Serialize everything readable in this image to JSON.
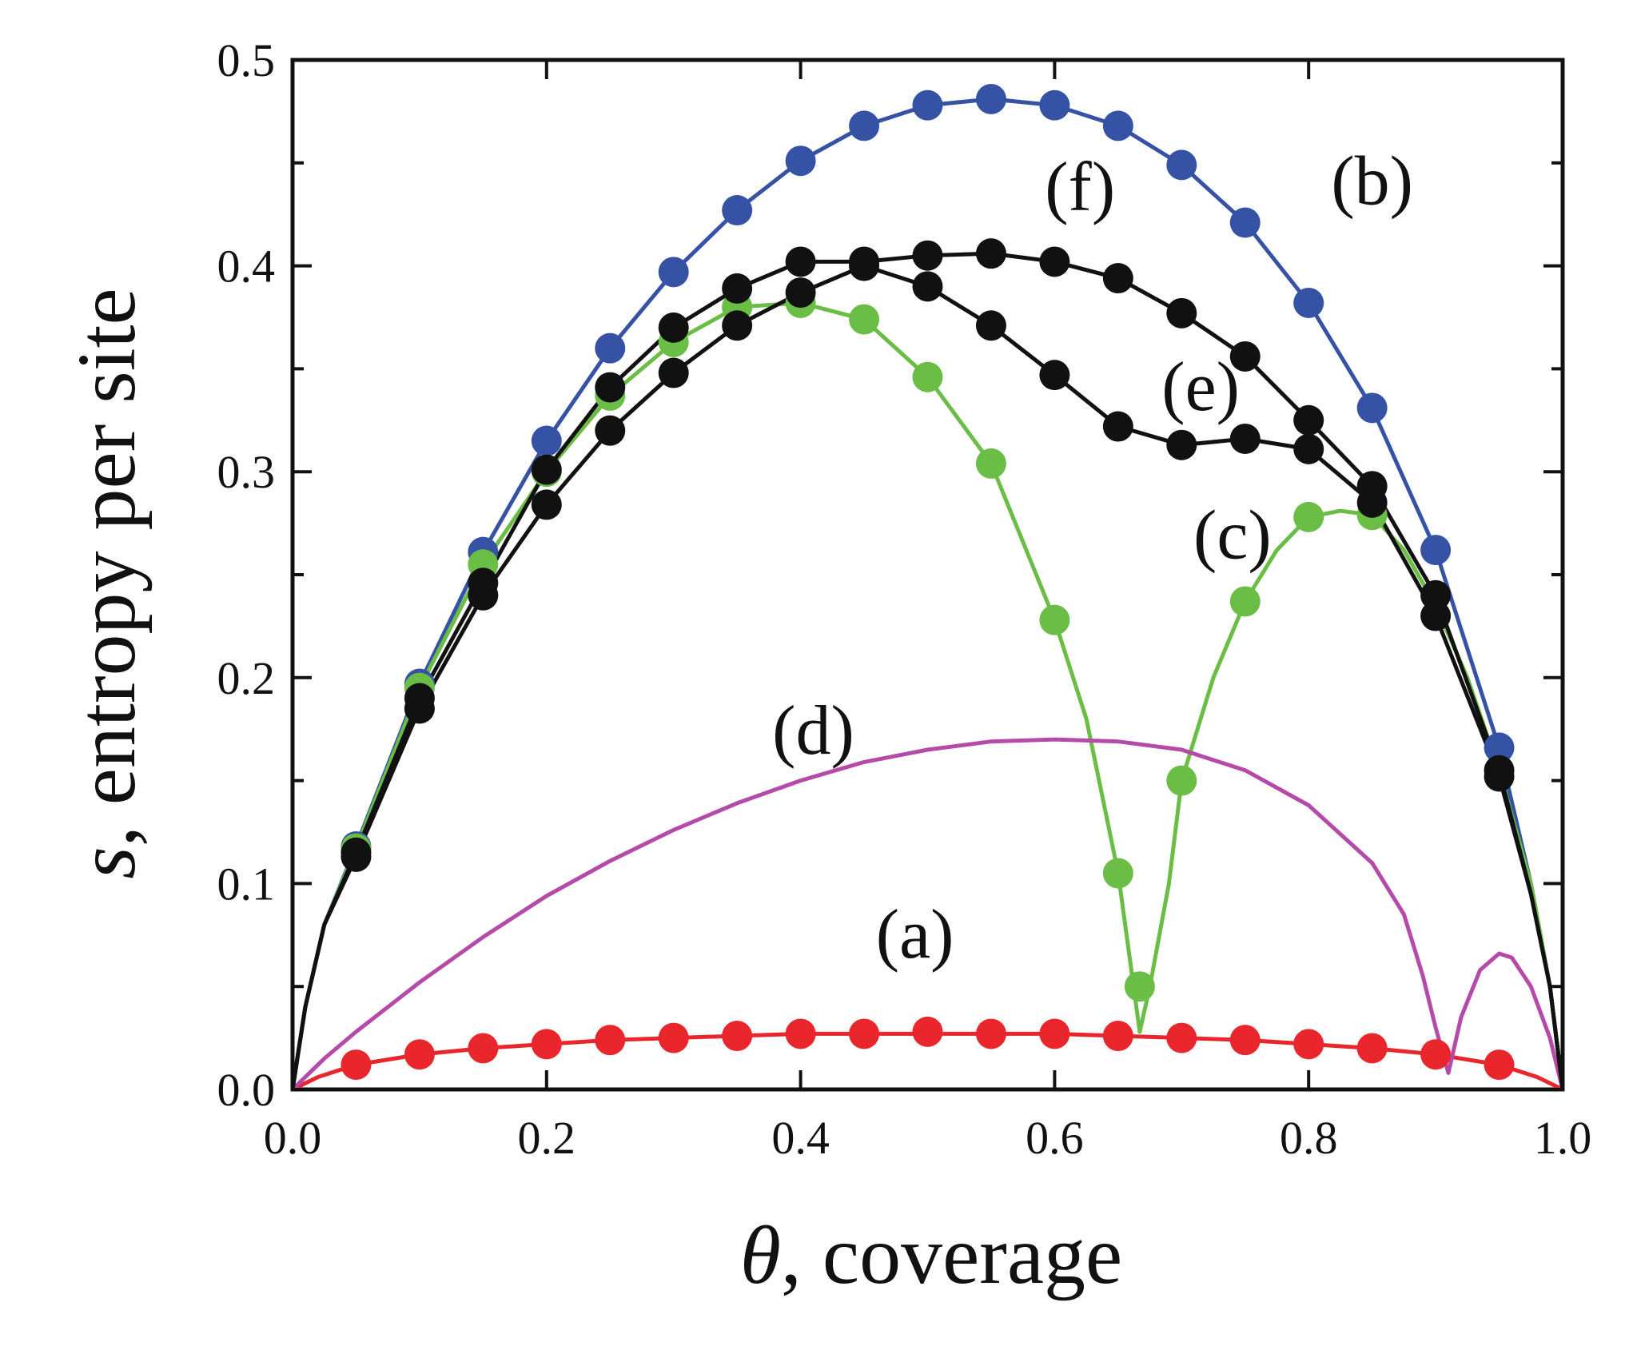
{
  "chart_data": {
    "type": "line",
    "xlabel": {
      "symbol": "θ",
      "text": ", coverage"
    },
    "ylabel": {
      "symbol": "s",
      "text": ", entropy per site"
    },
    "xlim": [
      0,
      1
    ],
    "ylim": [
      0,
      0.5
    ],
    "x_ticks": [
      0,
      0.2,
      0.4,
      0.6,
      0.8,
      1.0
    ],
    "x_tick_labels": [
      "0.0",
      "0.2",
      "0.4",
      "0.6",
      "0.8",
      "1.0"
    ],
    "y_ticks": [
      0,
      0.1,
      0.2,
      0.3,
      0.4,
      0.5
    ],
    "y_tick_labels": [
      "0.0",
      "0.1",
      "0.2",
      "0.3",
      "0.4",
      "0.5"
    ],
    "y_minor_ticks": [
      0.05,
      0.15,
      0.25,
      0.35,
      0.45
    ],
    "series": [
      {
        "name": "(a)",
        "color": "#e8262b",
        "line": [
          [
            0,
            0
          ],
          [
            0.02,
            0.006
          ],
          [
            0.05,
            0.012
          ],
          [
            0.1,
            0.017
          ],
          [
            0.15,
            0.02
          ],
          [
            0.2,
            0.022
          ],
          [
            0.25,
            0.024
          ],
          [
            0.3,
            0.025
          ],
          [
            0.35,
            0.026
          ],
          [
            0.4,
            0.027
          ],
          [
            0.45,
            0.027
          ],
          [
            0.5,
            0.027
          ],
          [
            0.55,
            0.027
          ],
          [
            0.6,
            0.027
          ],
          [
            0.65,
            0.026
          ],
          [
            0.7,
            0.025
          ],
          [
            0.75,
            0.024
          ],
          [
            0.8,
            0.022
          ],
          [
            0.85,
            0.02
          ],
          [
            0.9,
            0.017
          ],
          [
            0.95,
            0.012
          ],
          [
            0.98,
            0.006
          ],
          [
            1,
            0
          ]
        ],
        "points": [
          [
            0.05,
            0.012
          ],
          [
            0.1,
            0.017
          ],
          [
            0.15,
            0.02
          ],
          [
            0.2,
            0.022
          ],
          [
            0.25,
            0.024
          ],
          [
            0.3,
            0.025
          ],
          [
            0.35,
            0.026
          ],
          [
            0.4,
            0.027
          ],
          [
            0.45,
            0.027
          ],
          [
            0.5,
            0.028
          ],
          [
            0.55,
            0.027
          ],
          [
            0.6,
            0.027
          ],
          [
            0.65,
            0.026
          ],
          [
            0.7,
            0.025
          ],
          [
            0.75,
            0.024
          ],
          [
            0.8,
            0.022
          ],
          [
            0.85,
            0.02
          ],
          [
            0.9,
            0.017
          ],
          [
            0.95,
            0.012
          ]
        ]
      },
      {
        "name": "(b)",
        "color": "#3652a5",
        "line": [
          [
            0,
            0
          ],
          [
            0.01,
            0.04
          ],
          [
            0.025,
            0.08
          ],
          [
            0.05,
            0.118
          ],
          [
            0.1,
            0.197
          ],
          [
            0.15,
            0.261
          ],
          [
            0.2,
            0.315
          ],
          [
            0.25,
            0.36
          ],
          [
            0.3,
            0.397
          ],
          [
            0.35,
            0.427
          ],
          [
            0.4,
            0.451
          ],
          [
            0.45,
            0.468
          ],
          [
            0.5,
            0.478
          ],
          [
            0.55,
            0.481
          ],
          [
            0.6,
            0.478
          ],
          [
            0.65,
            0.468
          ],
          [
            0.7,
            0.449
          ],
          [
            0.75,
            0.421
          ],
          [
            0.8,
            0.382
          ],
          [
            0.85,
            0.331
          ],
          [
            0.9,
            0.262
          ],
          [
            0.95,
            0.166
          ],
          [
            0.975,
            0.1
          ],
          [
            0.99,
            0.05
          ],
          [
            1,
            0
          ]
        ],
        "points": [
          [
            0.05,
            0.118
          ],
          [
            0.1,
            0.197
          ],
          [
            0.15,
            0.261
          ],
          [
            0.2,
            0.315
          ],
          [
            0.25,
            0.36
          ],
          [
            0.3,
            0.397
          ],
          [
            0.35,
            0.427
          ],
          [
            0.4,
            0.451
          ],
          [
            0.45,
            0.468
          ],
          [
            0.5,
            0.478
          ],
          [
            0.55,
            0.481
          ],
          [
            0.6,
            0.478
          ],
          [
            0.65,
            0.468
          ],
          [
            0.7,
            0.449
          ],
          [
            0.75,
            0.421
          ],
          [
            0.8,
            0.382
          ],
          [
            0.85,
            0.331
          ],
          [
            0.9,
            0.262
          ],
          [
            0.95,
            0.166
          ]
        ]
      },
      {
        "name": "(c)",
        "color": "#6abd45",
        "line": [
          [
            0,
            0
          ],
          [
            0.01,
            0.04
          ],
          [
            0.025,
            0.08
          ],
          [
            0.05,
            0.117
          ],
          [
            0.1,
            0.195
          ],
          [
            0.15,
            0.255
          ],
          [
            0.2,
            0.3
          ],
          [
            0.25,
            0.337
          ],
          [
            0.3,
            0.363
          ],
          [
            0.35,
            0.38
          ],
          [
            0.4,
            0.382
          ],
          [
            0.45,
            0.374
          ],
          [
            0.5,
            0.346
          ],
          [
            0.55,
            0.304
          ],
          [
            0.6,
            0.228
          ],
          [
            0.625,
            0.18
          ],
          [
            0.65,
            0.105
          ],
          [
            0.66,
            0.06
          ],
          [
            0.667,
            0.028
          ],
          [
            0.675,
            0.05
          ],
          [
            0.69,
            0.1
          ],
          [
            0.7,
            0.15
          ],
          [
            0.725,
            0.2
          ],
          [
            0.75,
            0.237
          ],
          [
            0.775,
            0.262
          ],
          [
            0.8,
            0.278
          ],
          [
            0.825,
            0.281
          ],
          [
            0.85,
            0.279
          ],
          [
            0.875,
            0.262
          ],
          [
            0.9,
            0.235
          ],
          [
            0.925,
            0.2
          ],
          [
            0.95,
            0.155
          ],
          [
            0.975,
            0.1
          ],
          [
            0.99,
            0.05
          ],
          [
            1,
            0
          ]
        ],
        "points": [
          [
            0.05,
            0.117
          ],
          [
            0.1,
            0.195
          ],
          [
            0.15,
            0.255
          ],
          [
            0.2,
            0.3
          ],
          [
            0.25,
            0.337
          ],
          [
            0.3,
            0.363
          ],
          [
            0.35,
            0.38
          ],
          [
            0.4,
            0.382
          ],
          [
            0.45,
            0.374
          ],
          [
            0.5,
            0.346
          ],
          [
            0.55,
            0.304
          ],
          [
            0.6,
            0.228
          ],
          [
            0.65,
            0.105
          ],
          [
            0.667,
            0.05
          ],
          [
            0.7,
            0.15
          ],
          [
            0.75,
            0.237
          ],
          [
            0.8,
            0.278
          ],
          [
            0.85,
            0.279
          ]
        ]
      },
      {
        "name": "(d)",
        "color": "#b54aa8",
        "line": [
          [
            0,
            0
          ],
          [
            0.025,
            0.015
          ],
          [
            0.05,
            0.028
          ],
          [
            0.1,
            0.052
          ],
          [
            0.15,
            0.074
          ],
          [
            0.2,
            0.094
          ],
          [
            0.25,
            0.111
          ],
          [
            0.3,
            0.126
          ],
          [
            0.35,
            0.139
          ],
          [
            0.4,
            0.15
          ],
          [
            0.45,
            0.159
          ],
          [
            0.5,
            0.165
          ],
          [
            0.55,
            0.169
          ],
          [
            0.6,
            0.17
          ],
          [
            0.65,
            0.169
          ],
          [
            0.7,
            0.165
          ],
          [
            0.75,
            0.155
          ],
          [
            0.8,
            0.138
          ],
          [
            0.85,
            0.11
          ],
          [
            0.875,
            0.085
          ],
          [
            0.89,
            0.055
          ],
          [
            0.9,
            0.03
          ],
          [
            0.91,
            0.008
          ],
          [
            0.92,
            0.035
          ],
          [
            0.935,
            0.058
          ],
          [
            0.95,
            0.066
          ],
          [
            0.96,
            0.064
          ],
          [
            0.975,
            0.05
          ],
          [
            0.99,
            0.025
          ],
          [
            1,
            0
          ]
        ],
        "points": []
      },
      {
        "name": "(e)",
        "color": "#111111",
        "line": [
          [
            0,
            0
          ],
          [
            0.01,
            0.04
          ],
          [
            0.025,
            0.08
          ],
          [
            0.05,
            0.113
          ],
          [
            0.1,
            0.185
          ],
          [
            0.15,
            0.24
          ],
          [
            0.2,
            0.284
          ],
          [
            0.25,
            0.32
          ],
          [
            0.3,
            0.348
          ],
          [
            0.35,
            0.371
          ],
          [
            0.4,
            0.387
          ],
          [
            0.45,
            0.4
          ],
          [
            0.5,
            0.39
          ],
          [
            0.55,
            0.371
          ],
          [
            0.6,
            0.347
          ],
          [
            0.65,
            0.322
          ],
          [
            0.7,
            0.313
          ],
          [
            0.75,
            0.316
          ],
          [
            0.8,
            0.311
          ],
          [
            0.85,
            0.285
          ],
          [
            0.9,
            0.23
          ],
          [
            0.95,
            0.152
          ],
          [
            0.975,
            0.095
          ],
          [
            0.99,
            0.05
          ],
          [
            1,
            0
          ]
        ],
        "points": [
          [
            0.05,
            0.113
          ],
          [
            0.1,
            0.185
          ],
          [
            0.15,
            0.24
          ],
          [
            0.2,
            0.284
          ],
          [
            0.25,
            0.32
          ],
          [
            0.3,
            0.348
          ],
          [
            0.35,
            0.371
          ],
          [
            0.4,
            0.387
          ],
          [
            0.45,
            0.4
          ],
          [
            0.5,
            0.39
          ],
          [
            0.55,
            0.371
          ],
          [
            0.6,
            0.347
          ],
          [
            0.65,
            0.322
          ],
          [
            0.7,
            0.313
          ],
          [
            0.75,
            0.316
          ],
          [
            0.8,
            0.311
          ],
          [
            0.85,
            0.285
          ],
          [
            0.9,
            0.23
          ],
          [
            0.95,
            0.152
          ]
        ]
      },
      {
        "name": "(f)",
        "color": "#111111",
        "line": [
          [
            0,
            0
          ],
          [
            0.01,
            0.04
          ],
          [
            0.025,
            0.08
          ],
          [
            0.05,
            0.115
          ],
          [
            0.1,
            0.19
          ],
          [
            0.15,
            0.246
          ],
          [
            0.2,
            0.301
          ],
          [
            0.25,
            0.341
          ],
          [
            0.3,
            0.37
          ],
          [
            0.35,
            0.389
          ],
          [
            0.4,
            0.402
          ],
          [
            0.45,
            0.402
          ],
          [
            0.5,
            0.405
          ],
          [
            0.55,
            0.406
          ],
          [
            0.6,
            0.402
          ],
          [
            0.65,
            0.394
          ],
          [
            0.7,
            0.377
          ],
          [
            0.75,
            0.356
          ],
          [
            0.8,
            0.325
          ],
          [
            0.85,
            0.293
          ],
          [
            0.9,
            0.24
          ],
          [
            0.95,
            0.155
          ],
          [
            0.975,
            0.095
          ],
          [
            0.99,
            0.05
          ],
          [
            1,
            0
          ]
        ],
        "points": [
          [
            0.05,
            0.115
          ],
          [
            0.1,
            0.19
          ],
          [
            0.15,
            0.246
          ],
          [
            0.2,
            0.301
          ],
          [
            0.25,
            0.341
          ],
          [
            0.3,
            0.37
          ],
          [
            0.35,
            0.389
          ],
          [
            0.4,
            0.402
          ],
          [
            0.45,
            0.402
          ],
          [
            0.5,
            0.405
          ],
          [
            0.55,
            0.406
          ],
          [
            0.6,
            0.402
          ],
          [
            0.65,
            0.394
          ],
          [
            0.7,
            0.377
          ],
          [
            0.75,
            0.356
          ],
          [
            0.8,
            0.325
          ],
          [
            0.85,
            0.293
          ],
          [
            0.9,
            0.24
          ],
          [
            0.95,
            0.155
          ]
        ]
      }
    ],
    "annotations": [
      {
        "text": "(a)",
        "x": 0.49,
        "y": 0.064
      },
      {
        "text": "(b)",
        "x": 0.85,
        "y": 0.43
      },
      {
        "text": "(c)",
        "x": 0.74,
        "y": 0.258
      },
      {
        "text": "(d)",
        "x": 0.41,
        "y": 0.163
      },
      {
        "text": "(e)",
        "x": 0.715,
        "y": 0.33
      },
      {
        "text": "(f)",
        "x": 0.62,
        "y": 0.427
      }
    ]
  }
}
